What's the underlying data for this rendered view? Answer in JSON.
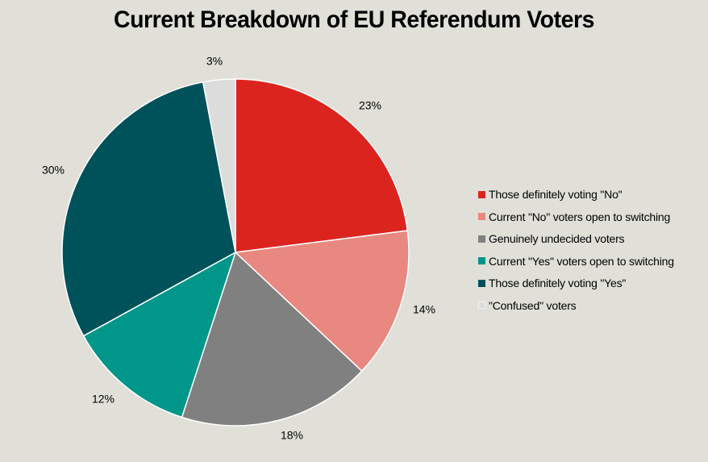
{
  "chart_data": {
    "type": "pie",
    "title": "Current Breakdown of EU Referendum Voters",
    "slices": [
      {
        "label": "Those definitely voting \"No\"",
        "value": 23,
        "display": "23%",
        "color": "#dc241f"
      },
      {
        "label": "Current \"No\" voters open to switching",
        "value": 14,
        "display": "14%",
        "color": "#e88880"
      },
      {
        "label": "Genuinely undecided voters",
        "value": 18,
        "display": "18%",
        "color": "#808080"
      },
      {
        "label": "Current \"Yes\" voters open to switching",
        "value": 12,
        "display": "12%",
        "color": "#00968a"
      },
      {
        "label": "Those definitely voting \"Yes\"",
        "value": 30,
        "display": "30%",
        "color": "#00525a"
      },
      {
        "label": "\"Confused\" voters",
        "value": 3,
        "display": "3%",
        "color": "#dcdcdc"
      }
    ],
    "legend_position": "right",
    "start_angle": "12 o'clock",
    "direction": "clockwise"
  }
}
